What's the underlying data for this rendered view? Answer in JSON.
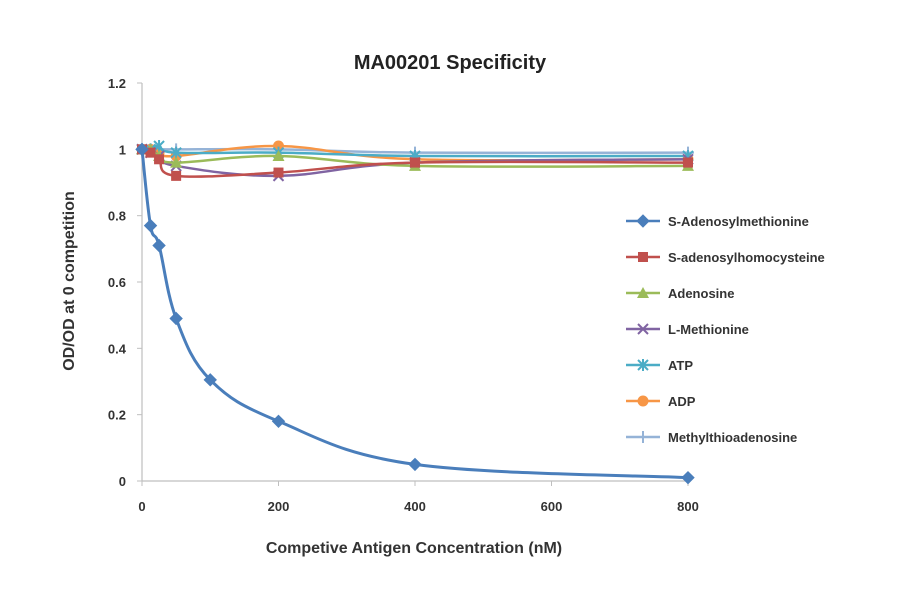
{
  "chart_data": {
    "type": "line",
    "title": "MA00201 Specificity",
    "xlabel": "Competive Antigen Concentration (nM)",
    "ylabel": "OD/OD at 0 competition",
    "xlim": [
      0,
      800
    ],
    "ylim": [
      0,
      1.2
    ],
    "x_ticks": [
      "0",
      "200",
      "400",
      "600",
      "800"
    ],
    "y_ticks": [
      "0",
      "0.2",
      "0.4",
      "0.6",
      "0.8",
      "1",
      "1.2"
    ],
    "grid": false,
    "legend_position": "right",
    "series": [
      {
        "name": "S-Adenosylmethionine",
        "color": "#4A7EBB",
        "marker": "diamond",
        "x": [
          0,
          12.5,
          25,
          50,
          100,
          200,
          400,
          800
        ],
        "y": [
          1.0,
          0.77,
          0.71,
          0.49,
          0.305,
          0.18,
          0.05,
          0.01
        ]
      },
      {
        "name": "S-adenosylhomocysteine",
        "color": "#C0504D",
        "marker": "square",
        "x": [
          0,
          12.5,
          25,
          50,
          200,
          400,
          800
        ],
        "y": [
          1.0,
          0.99,
          0.97,
          0.92,
          0.93,
          0.96,
          0.96
        ]
      },
      {
        "name": "Adenosine",
        "color": "#9BBB59",
        "marker": "triangle",
        "x": [
          0,
          12.5,
          25,
          50,
          200,
          400,
          800
        ],
        "y": [
          1.0,
          1.0,
          0.98,
          0.96,
          0.98,
          0.95,
          0.95
        ]
      },
      {
        "name": "L-Methionine",
        "color": "#8064A2",
        "marker": "cross",
        "x": [
          0,
          12.5,
          25,
          50,
          200,
          400,
          800
        ],
        "y": [
          1.0,
          0.99,
          0.98,
          0.95,
          0.92,
          0.96,
          0.97
        ]
      },
      {
        "name": "ATP",
        "color": "#4BACC6",
        "marker": "asterisk",
        "x": [
          0,
          12.5,
          25,
          50,
          200,
          400,
          800
        ],
        "y": [
          1.0,
          1.0,
          1.01,
          0.99,
          0.99,
          0.98,
          0.98
        ]
      },
      {
        "name": "ADP",
        "color": "#F79646",
        "marker": "circle",
        "x": [
          0,
          12.5,
          25,
          50,
          200,
          400,
          800
        ],
        "y": [
          1.0,
          1.0,
          0.99,
          0.98,
          1.01,
          0.97,
          0.97
        ]
      },
      {
        "name": "Methylthioadenosine",
        "color": "#95B3D7",
        "marker": "plus",
        "x": [
          0,
          12.5,
          25,
          50,
          200,
          400,
          800
        ],
        "y": [
          1.0,
          1.0,
          1.0,
          1.0,
          1.0,
          0.99,
          0.99
        ]
      }
    ]
  }
}
